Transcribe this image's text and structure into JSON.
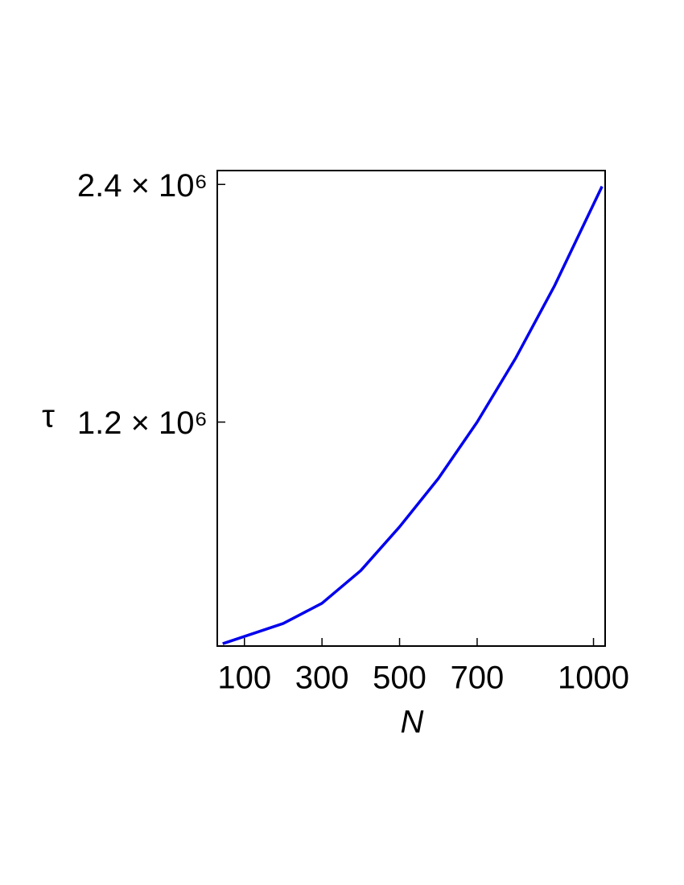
{
  "chart_data": {
    "type": "line",
    "x_label": "N",
    "y_label": "τ",
    "x": [
      44,
      200,
      300,
      400,
      500,
      600,
      700,
      800,
      900,
      1022
    ],
    "series": [
      {
        "name": "τ",
        "color": "#0000ee",
        "values": [
          81000,
          183000,
          285000,
          450000,
          671000,
          915000,
          1200000,
          1525000,
          1890000,
          2390000
        ]
      }
    ],
    "xlim": [
      30,
      1030
    ],
    "xticks": [
      100,
      300,
      500,
      700,
      1000
    ],
    "ylim": [
      69000,
      2470000
    ],
    "yticks": [
      {
        "value": 1200000,
        "label": "1.2 × 10⁶"
      },
      {
        "value": 2400000,
        "label": "2.4 × 10⁶"
      }
    ]
  }
}
